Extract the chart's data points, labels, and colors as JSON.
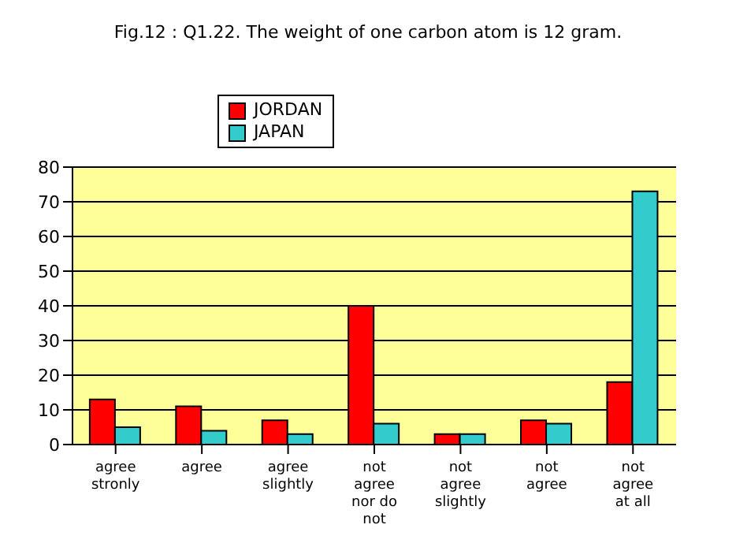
{
  "chart_data": {
    "type": "bar",
    "title": "Fig.12 : Q1.22. The weight of one carbon atom is 12 gram.",
    "categories": [
      "agree stronly",
      "agree",
      "agree slightly",
      "not agree nor do not",
      "not agree slightly",
      "not agree",
      "not agree at all"
    ],
    "series": [
      {
        "name": "JORDAN",
        "color": "#ff0000",
        "values": [
          13,
          11,
          7,
          40,
          3,
          7,
          18
        ]
      },
      {
        "name": "JAPAN",
        "color": "#33cccc",
        "values": [
          5,
          4,
          3,
          6,
          3,
          6,
          73
        ]
      }
    ],
    "ylim": [
      0,
      80
    ],
    "yticks": [
      0,
      10,
      20,
      30,
      40,
      50,
      60,
      70,
      80
    ],
    "grid": "y",
    "legend": "top left"
  }
}
